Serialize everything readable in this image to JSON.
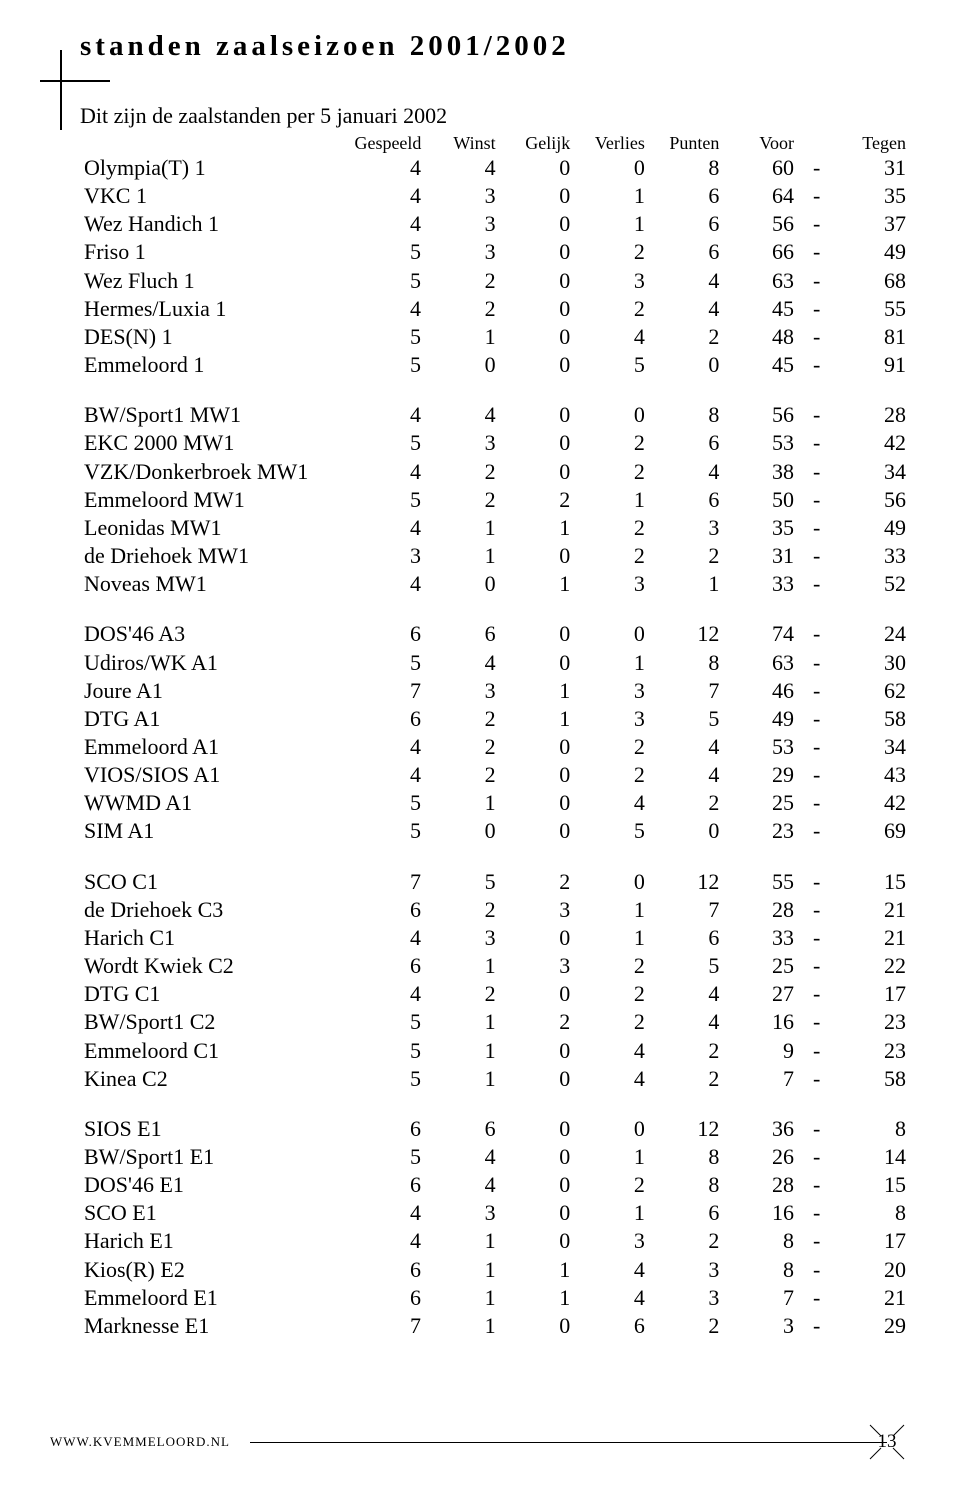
{
  "title": "standen zaalseizoen 2001/2002",
  "subtitle": "Dit zijn de zaalstanden per 5 januari 2002",
  "columns": [
    "Gespeeld",
    "Winst",
    "Gelijk",
    "Verlies",
    "Punten",
    "Voor",
    "Tegen"
  ],
  "groups": [
    [
      {
        "team": "Olympia(T) 1",
        "g": 4,
        "w": 4,
        "d": 0,
        "l": 0,
        "p": 8,
        "for": 60,
        "against": 31
      },
      {
        "team": "VKC 1",
        "g": 4,
        "w": 3,
        "d": 0,
        "l": 1,
        "p": 6,
        "for": 64,
        "against": 35
      },
      {
        "team": "Wez Handich 1",
        "g": 4,
        "w": 3,
        "d": 0,
        "l": 1,
        "p": 6,
        "for": 56,
        "against": 37
      },
      {
        "team": "Friso 1",
        "g": 5,
        "w": 3,
        "d": 0,
        "l": 2,
        "p": 6,
        "for": 66,
        "against": 49
      },
      {
        "team": "Wez Fluch 1",
        "g": 5,
        "w": 2,
        "d": 0,
        "l": 3,
        "p": 4,
        "for": 63,
        "against": 68
      },
      {
        "team": "Hermes/Luxia 1",
        "g": 4,
        "w": 2,
        "d": 0,
        "l": 2,
        "p": 4,
        "for": 45,
        "against": 55
      },
      {
        "team": "DES(N) 1",
        "g": 5,
        "w": 1,
        "d": 0,
        "l": 4,
        "p": 2,
        "for": 48,
        "against": 81
      },
      {
        "team": "Emmeloord 1",
        "g": 5,
        "w": 0,
        "d": 0,
        "l": 5,
        "p": 0,
        "for": 45,
        "against": 91
      }
    ],
    [
      {
        "team": "BW/Sport1 MW1",
        "g": 4,
        "w": 4,
        "d": 0,
        "l": 0,
        "p": 8,
        "for": 56,
        "against": 28
      },
      {
        "team": "EKC 2000 MW1",
        "g": 5,
        "w": 3,
        "d": 0,
        "l": 2,
        "p": 6,
        "for": 53,
        "against": 42
      },
      {
        "team": "VZK/Donkerbroek MW1",
        "g": 4,
        "w": 2,
        "d": 0,
        "l": 2,
        "p": 4,
        "for": 38,
        "against": 34
      },
      {
        "team": "Emmeloord MW1",
        "g": 5,
        "w": 2,
        "d": 2,
        "l": 1,
        "p": 6,
        "for": 50,
        "against": 56
      },
      {
        "team": "Leonidas MW1",
        "g": 4,
        "w": 1,
        "d": 1,
        "l": 2,
        "p": 3,
        "for": 35,
        "against": 49
      },
      {
        "team": "de Driehoek MW1",
        "g": 3,
        "w": 1,
        "d": 0,
        "l": 2,
        "p": 2,
        "for": 31,
        "against": 33
      },
      {
        "team": "Noveas MW1",
        "g": 4,
        "w": 0,
        "d": 1,
        "l": 3,
        "p": 1,
        "for": 33,
        "against": 52
      }
    ],
    [
      {
        "team": "DOS'46 A3",
        "g": 6,
        "w": 6,
        "d": 0,
        "l": 0,
        "p": 12,
        "for": 74,
        "against": 24
      },
      {
        "team": "Udiros/WK A1",
        "g": 5,
        "w": 4,
        "d": 0,
        "l": 1,
        "p": 8,
        "for": 63,
        "against": 30
      },
      {
        "team": "Joure A1",
        "g": 7,
        "w": 3,
        "d": 1,
        "l": 3,
        "p": 7,
        "for": 46,
        "against": 62
      },
      {
        "team": "DTG A1",
        "g": 6,
        "w": 2,
        "d": 1,
        "l": 3,
        "p": 5,
        "for": 49,
        "against": 58
      },
      {
        "team": "Emmeloord A1",
        "g": 4,
        "w": 2,
        "d": 0,
        "l": 2,
        "p": 4,
        "for": 53,
        "against": 34
      },
      {
        "team": "VIOS/SIOS A1",
        "g": 4,
        "w": 2,
        "d": 0,
        "l": 2,
        "p": 4,
        "for": 29,
        "against": 43
      },
      {
        "team": "WWMD A1",
        "g": 5,
        "w": 1,
        "d": 0,
        "l": 4,
        "p": 2,
        "for": 25,
        "against": 42
      },
      {
        "team": "SIM A1",
        "g": 5,
        "w": 0,
        "d": 0,
        "l": 5,
        "p": 0,
        "for": 23,
        "against": 69
      }
    ],
    [
      {
        "team": "SCO C1",
        "g": 7,
        "w": 5,
        "d": 2,
        "l": 0,
        "p": 12,
        "for": 55,
        "against": 15
      },
      {
        "team": "de Driehoek C3",
        "g": 6,
        "w": 2,
        "d": 3,
        "l": 1,
        "p": 7,
        "for": 28,
        "against": 21
      },
      {
        "team": "Harich C1",
        "g": 4,
        "w": 3,
        "d": 0,
        "l": 1,
        "p": 6,
        "for": 33,
        "against": 21
      },
      {
        "team": "Wordt Kwiek C2",
        "g": 6,
        "w": 1,
        "d": 3,
        "l": 2,
        "p": 5,
        "for": 25,
        "against": 22
      },
      {
        "team": "DTG C1",
        "g": 4,
        "w": 2,
        "d": 0,
        "l": 2,
        "p": 4,
        "for": 27,
        "against": 17
      },
      {
        "team": "BW/Sport1 C2",
        "g": 5,
        "w": 1,
        "d": 2,
        "l": 2,
        "p": 4,
        "for": 16,
        "against": 23
      },
      {
        "team": "Emmeloord C1",
        "g": 5,
        "w": 1,
        "d": 0,
        "l": 4,
        "p": 2,
        "for": 9,
        "against": 23
      },
      {
        "team": "Kinea C2",
        "g": 5,
        "w": 1,
        "d": 0,
        "l": 4,
        "p": 2,
        "for": 7,
        "against": 58
      }
    ],
    [
      {
        "team": "SIOS E1",
        "g": 6,
        "w": 6,
        "d": 0,
        "l": 0,
        "p": 12,
        "for": 36,
        "against": 8
      },
      {
        "team": "BW/Sport1 E1",
        "g": 5,
        "w": 4,
        "d": 0,
        "l": 1,
        "p": 8,
        "for": 26,
        "against": 14
      },
      {
        "team": "DOS'46 E1",
        "g": 6,
        "w": 4,
        "d": 0,
        "l": 2,
        "p": 8,
        "for": 28,
        "against": 15
      },
      {
        "team": "SCO E1",
        "g": 4,
        "w": 3,
        "d": 0,
        "l": 1,
        "p": 6,
        "for": 16,
        "against": 8
      },
      {
        "team": "Harich E1",
        "g": 4,
        "w": 1,
        "d": 0,
        "l": 3,
        "p": 2,
        "for": 8,
        "against": 17
      },
      {
        "team": "Kios(R) E2",
        "g": 6,
        "w": 1,
        "d": 1,
        "l": 4,
        "p": 3,
        "for": 8,
        "against": 20
      },
      {
        "team": "Emmeloord E1",
        "g": 6,
        "w": 1,
        "d": 1,
        "l": 4,
        "p": 3,
        "for": 7,
        "against": 21
      },
      {
        "team": "Marknesse E1",
        "g": 7,
        "w": 1,
        "d": 0,
        "l": 6,
        "p": 2,
        "for": 3,
        "against": 29
      }
    ]
  ],
  "footer_url": "www.kvemmeloord.nl",
  "page_number": "13",
  "colors": {
    "text": "#000000",
    "background": "#ffffff"
  },
  "typography": {
    "title_fontsize": 29,
    "body_fontsize": 22,
    "header_fontsize": 18
  }
}
